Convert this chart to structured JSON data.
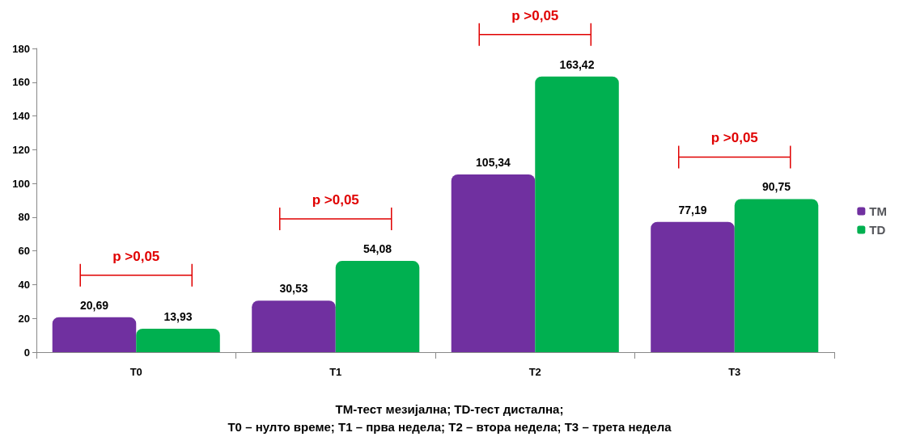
{
  "chart_data": {
    "type": "bar",
    "categories": [
      "T0",
      "T1",
      "T2",
      "T3"
    ],
    "series": [
      {
        "name": "TM",
        "color": "#7030a0",
        "values": [
          20.69,
          30.53,
          105.34,
          77.19
        ],
        "value_labels": [
          "20,69",
          "30,53",
          "105,34",
          "77,19"
        ]
      },
      {
        "name": "TD",
        "color": "#00b050",
        "values": [
          13.93,
          54.08,
          163.42,
          90.75
        ],
        "value_labels": [
          "13,93",
          "54,08",
          "163,42",
          "90,75"
        ]
      }
    ],
    "ylim": [
      0,
      180
    ],
    "yticks": [
      0,
      20,
      40,
      60,
      80,
      100,
      120,
      140,
      160,
      180
    ],
    "grid": false,
    "legend": "right",
    "annotations": [
      "p >0,05",
      "p >0,05",
      "p >0,05",
      "p >0,05",
      "TM-тест мезијална; TD-тест дистална;",
      "T0 – нулто време; T1 – прва недела; T2 – втора недела; T3 – трета недела"
    ]
  }
}
